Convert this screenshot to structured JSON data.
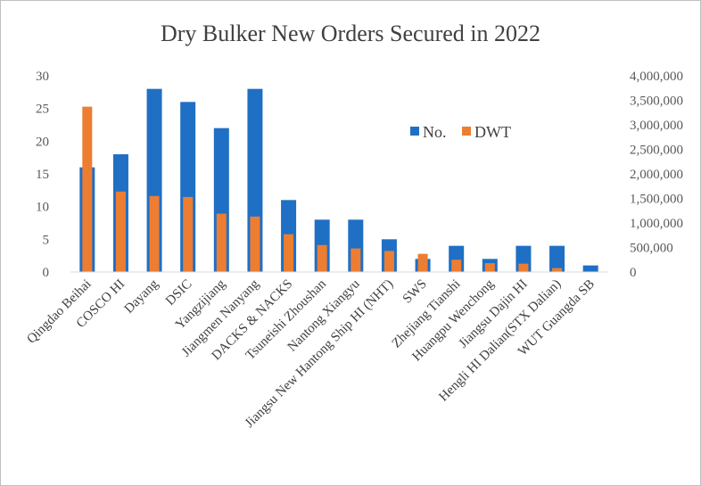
{
  "chart_data": {
    "type": "bar",
    "title": "Dry Bulker New Orders Secured in 2022",
    "categories": [
      "Qingdao Beihai",
      "COSCO HI",
      "Dayang",
      "DSIC",
      "Yangzijiang",
      "Jiangmen Nanyang",
      "DACKS & NACKS",
      "Tsuneishi Zhoushan",
      "Nantong Xiangyu",
      "Jiangsu New Hantong Ship HI (NHT)",
      "SWS",
      "Zhejiang Tianshi",
      "Huangpu Wenchong",
      "Jiangsu Dajin HI",
      "Hengli HI Dalian(STX Dalian)",
      "WUT Guangda SB"
    ],
    "series": [
      {
        "name": "No.",
        "axis": "left",
        "color": "#1f6fc5",
        "values": [
          16,
          18,
          28,
          26,
          22,
          28,
          11,
          8,
          8,
          5,
          2,
          4,
          2,
          4,
          4,
          1
        ]
      },
      {
        "name": "DWT",
        "axis": "right",
        "color": "#ed7d31",
        "values": [
          3370000,
          1640000,
          1550000,
          1530000,
          1190000,
          1130000,
          770000,
          550000,
          480000,
          430000,
          370000,
          250000,
          180000,
          170000,
          80000,
          0
        ]
      }
    ],
    "left_axis": {
      "min": 0,
      "max": 30,
      "step": 5,
      "ticks": [
        "0",
        "5",
        "10",
        "15",
        "20",
        "25",
        "30"
      ]
    },
    "right_axis": {
      "min": 0,
      "max": 4000000,
      "step": 500000,
      "ticks": [
        "0",
        "500,000",
        "1,000,000",
        "1,500,000",
        "2,000,000",
        "2,500,000",
        "3,000,000",
        "3,500,000",
        "4,000,000"
      ]
    },
    "grid": false,
    "legend": "inside-top-right"
  }
}
